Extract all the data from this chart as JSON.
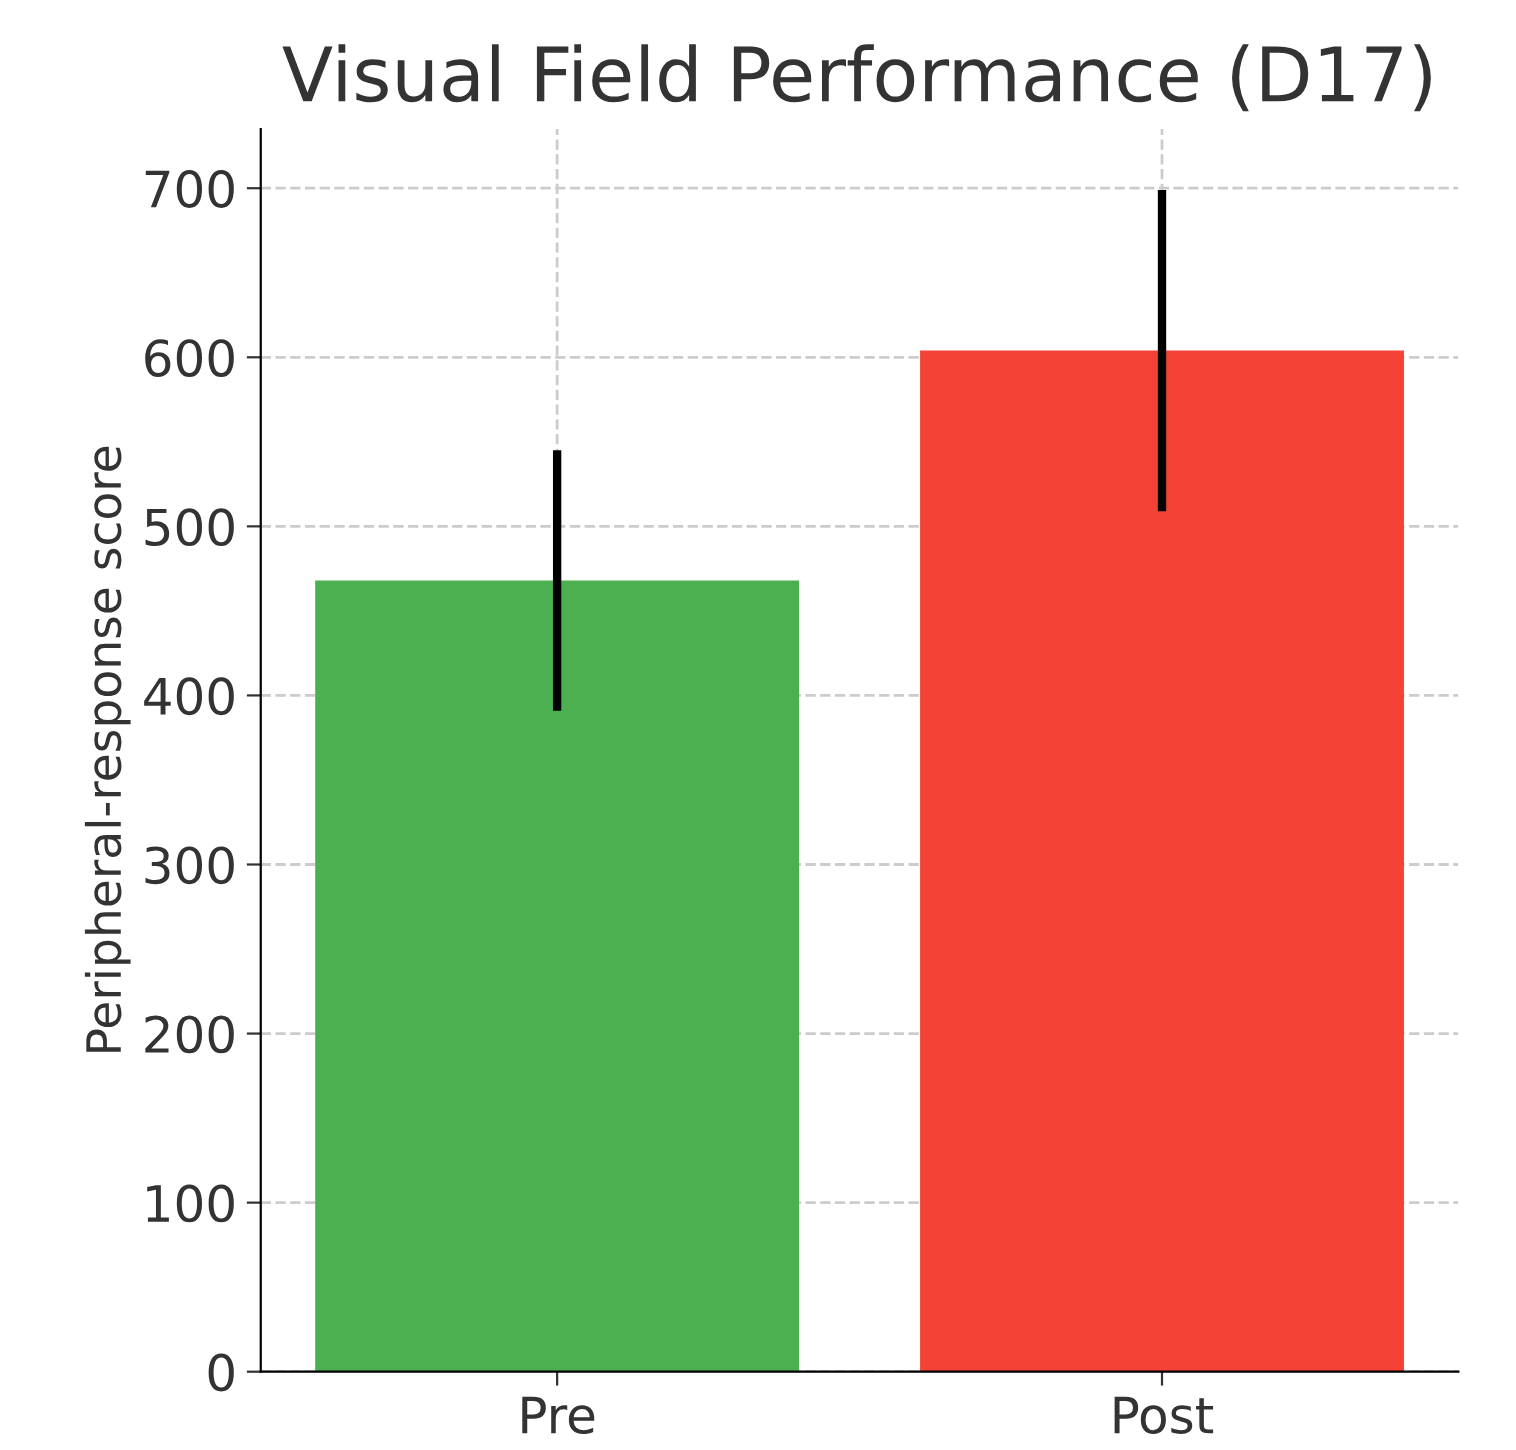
{
  "chart_data": {
    "type": "bar",
    "title": "Visual Field Performance (D17)",
    "ylabel": "Peripheral-response score",
    "categories": [
      "Pre",
      "Post"
    ],
    "values": [
      468,
      604
    ],
    "colors": [
      "#4caf50",
      "#f44336"
    ],
    "errors": [
      77,
      95
    ],
    "ylim": [
      0,
      735
    ],
    "yticks": [
      0,
      100,
      200,
      300,
      400,
      500,
      600,
      700
    ],
    "grid": true,
    "legend": false
  }
}
